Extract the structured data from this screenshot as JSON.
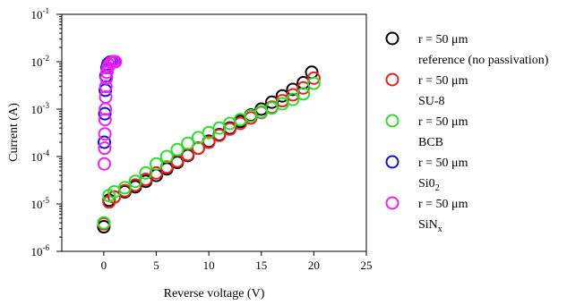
{
  "chart_data": {
    "type": "scatter",
    "xlabel": "Reverse voltage (V)",
    "ylabel": "Current (A)",
    "xlim": [
      -4,
      25
    ],
    "ylim": [
      1e-06,
      0.1
    ],
    "yscale": "log",
    "x_ticks": [
      0,
      5,
      10,
      15,
      20,
      25
    ],
    "y_ticks": [
      {
        "value": 1e-06,
        "base": "10",
        "exp": "-6"
      },
      {
        "value": 1e-05,
        "base": "10",
        "exp": "-5"
      },
      {
        "value": 0.0001,
        "base": "10",
        "exp": "-4"
      },
      {
        "value": 0.001,
        "base": "10",
        "exp": "-3"
      },
      {
        "value": 0.01,
        "base": "10",
        "exp": "-2"
      },
      {
        "value": 0.1,
        "base": "10",
        "exp": "-1"
      }
    ],
    "grid": false,
    "legend_position": "right",
    "marker": "open-circle",
    "series": [
      {
        "legend_line1": "r = 50 μm",
        "legend_line2": "reference (no passivation)",
        "color": "#000000",
        "points": [
          [
            0,
            3.3e-06
          ],
          [
            0.5,
            1.2e-05
          ],
          [
            1,
            1.4e-05
          ],
          [
            2,
            1.8e-05
          ],
          [
            3,
            2.3e-05
          ],
          [
            4,
            3e-05
          ],
          [
            5,
            4e-05
          ],
          [
            6,
            5.5e-05
          ],
          [
            7,
            7.5e-05
          ],
          [
            8,
            0.000105
          ],
          [
            9,
            0.00015
          ],
          [
            10,
            0.00021
          ],
          [
            11,
            0.00029
          ],
          [
            12,
            0.0004
          ],
          [
            13,
            0.00055
          ],
          [
            14,
            0.00075
          ],
          [
            15,
            0.001
          ],
          [
            16,
            0.0014
          ],
          [
            17,
            0.0019
          ],
          [
            18,
            0.0026
          ],
          [
            19,
            0.0036
          ],
          [
            19.8,
            0.006
          ]
        ]
      },
      {
        "legend_line1": "r = 50 μm",
        "legend_line2": "SU-8",
        "color": "#e8201e",
        "points": [
          [
            0,
            3.8e-06
          ],
          [
            0.5,
            1.1e-05
          ],
          [
            1,
            1.4e-05
          ],
          [
            2,
            1.9e-05
          ],
          [
            3,
            2.5e-05
          ],
          [
            4,
            3.3e-05
          ],
          [
            5,
            4.5e-05
          ],
          [
            6,
            6e-05
          ],
          [
            7,
            8e-05
          ],
          [
            8,
            0.00011
          ],
          [
            9,
            0.00015
          ],
          [
            10,
            0.0002
          ],
          [
            11,
            0.00028
          ],
          [
            12,
            0.00038
          ],
          [
            13,
            0.0005
          ],
          [
            14,
            0.00065
          ],
          [
            15,
            0.00085
          ],
          [
            16,
            0.0011
          ],
          [
            17,
            0.0015
          ],
          [
            18,
            0.002
          ],
          [
            19,
            0.0028
          ],
          [
            20,
            0.0045
          ]
        ]
      },
      {
        "legend_line1": "r = 50 μm",
        "legend_line2": "BCB",
        "color": "#2edc2e",
        "points": [
          [
            0,
            4e-06
          ],
          [
            0.5,
            1.5e-05
          ],
          [
            1,
            1.8e-05
          ],
          [
            2,
            2.2e-05
          ],
          [
            3,
            3e-05
          ],
          [
            4,
            4.5e-05
          ],
          [
            5,
            7e-05
          ],
          [
            6,
            0.0001
          ],
          [
            7,
            0.00014
          ],
          [
            8,
            0.00019
          ],
          [
            9,
            0.00025
          ],
          [
            10,
            0.00032
          ],
          [
            11,
            0.0004
          ],
          [
            12,
            0.0005
          ],
          [
            13,
            0.0006
          ],
          [
            14,
            0.00072
          ],
          [
            15,
            0.00088
          ],
          [
            16,
            0.00105
          ],
          [
            17,
            0.0013
          ],
          [
            18,
            0.0016
          ],
          [
            19,
            0.0021
          ],
          [
            20,
            0.0035
          ]
        ]
      },
      {
        "legend_line1": "r = 50 μm",
        "legend_line2_base": "Si0",
        "legend_line2_sub": "2",
        "color": "#1010e0",
        "points": [
          [
            0.05,
            0.0002
          ],
          [
            0.1,
            0.0008
          ],
          [
            0.15,
            0.0025
          ],
          [
            0.2,
            0.005
          ],
          [
            0.3,
            0.0075
          ],
          [
            0.4,
            0.009
          ],
          [
            0.6,
            0.0098
          ],
          [
            0.8,
            0.01
          ],
          [
            1.0,
            0.01
          ]
        ]
      },
      {
        "legend_line1": "r = 50 μm",
        "legend_line2_base": "SiN",
        "legend_line2_sub": "x",
        "color": "#ee22ee",
        "points": [
          [
            0.05,
            7e-05
          ],
          [
            0.08,
            0.00015
          ],
          [
            0.1,
            0.0003
          ],
          [
            0.12,
            0.0006
          ],
          [
            0.15,
            0.001
          ],
          [
            0.18,
            0.0018
          ],
          [
            0.2,
            0.003
          ],
          [
            0.25,
            0.0045
          ],
          [
            0.3,
            0.006
          ],
          [
            0.4,
            0.0075
          ],
          [
            0.5,
            0.0085
          ],
          [
            0.7,
            0.0095
          ],
          [
            0.9,
            0.01
          ],
          [
            1.1,
            0.01
          ]
        ]
      }
    ]
  }
}
